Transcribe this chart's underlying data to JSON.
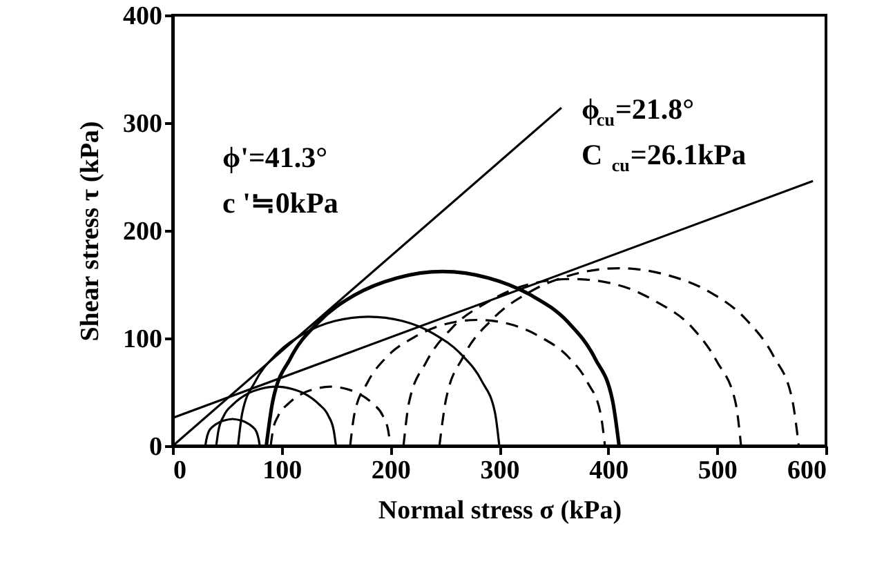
{
  "chart_data": {
    "type": "line",
    "xlabel": "Normal stress   σ (kPa)",
    "ylabel": "Shear stress    τ (kPa)",
    "xlim": [
      0,
      600
    ],
    "xticks": [
      0,
      100,
      200,
      300,
      400,
      500,
      600
    ],
    "ylim": [
      0,
      400
    ],
    "yticks": [
      0,
      100,
      200,
      300,
      400
    ],
    "series": [
      {
        "color": "#000000",
        "line_style": "solid",
        "x": [
          0,
          357
        ],
        "values": [
          0,
          314
        ]
      },
      {
        "color": "#000000",
        "line_style": "solid",
        "x": [
          0,
          588
        ],
        "values": [
          26,
          246
        ]
      },
      {
        "color": "#000000",
        "line_style": "solid",
        "x": [
          30,
          31,
          33,
          37,
          43,
          49,
          55,
          61,
          67,
          73,
          77,
          79,
          80
        ],
        "values": [
          0,
          6,
          13,
          18,
          22,
          24,
          25,
          24,
          22,
          18,
          13,
          6,
          0
        ]
      },
      {
        "color": "#000000",
        "line_style": "solid",
        "x": [
          40,
          42,
          47,
          56,
          68,
          81,
          95,
          109,
          122,
          134,
          143,
          148,
          150
        ],
        "values": [
          0,
          14,
          28,
          39,
          48,
          53,
          55,
          53,
          48,
          39,
          28,
          14,
          0
        ]
      },
      {
        "color": "#000000",
        "line_style": "solid",
        "x": [
          60,
          64,
          76,
          95,
          120,
          149,
          180,
          211,
          240,
          265,
          284,
          296,
          300
        ],
        "values": [
          0,
          31,
          60,
          85,
          104,
          116,
          120,
          116,
          104,
          85,
          60,
          31,
          0
        ]
      },
      {
        "color": "#000000",
        "line_style": "solid",
        "x": [
          86,
          92,
          108,
          134,
          167,
          206,
          248,
          290,
          329,
          363,
          388,
          404,
          410
        ],
        "values": [
          0,
          42,
          81,
          115,
          140,
          156,
          162,
          156,
          140,
          115,
          81,
          42,
          0
        ]
      },
      {
        "color": "#000000",
        "line_style": "dashed",
        "x": [
          90,
          92,
          97,
          106,
          118,
          131,
          145,
          159,
          172,
          184,
          193,
          198,
          200
        ],
        "values": [
          0,
          14,
          28,
          39,
          48,
          53,
          55,
          53,
          48,
          39,
          28,
          14,
          0
        ]
      },
      {
        "color": "#000000",
        "line_style": "dashed",
        "x": [
          163,
          167,
          179,
          197,
          222,
          250,
          280,
          310,
          338,
          363,
          381,
          393,
          397
        ],
        "values": [
          0,
          30,
          59,
          83,
          101,
          113,
          117,
          113,
          101,
          83,
          59,
          30,
          0
        ]
      },
      {
        "color": "#000000",
        "line_style": "dashed",
        "x": [
          212,
          217,
          233,
          257,
          290,
          327,
          367,
          407,
          444,
          477,
          500,
          517,
          522
        ],
        "values": [
          0,
          40,
          78,
          110,
          134,
          150,
          155,
          150,
          134,
          110,
          78,
          40,
          0
        ]
      },
      {
        "color": "#000000",
        "line_style": "dashed",
        "x": [
          245,
          251,
          267,
          293,
          328,
          367,
          410,
          453,
          493,
          527,
          552,
          569,
          575
        ],
        "values": [
          0,
          43,
          83,
          117,
          143,
          159,
          165,
          159,
          143,
          117,
          83,
          43,
          0
        ]
      }
    ],
    "annotations": [
      "ϕ'=41.3°",
      "c '≒0kPa",
      "ϕ$_{cu}$=21.8°",
      "C $_{cu}$=26.1kPa"
    ]
  }
}
